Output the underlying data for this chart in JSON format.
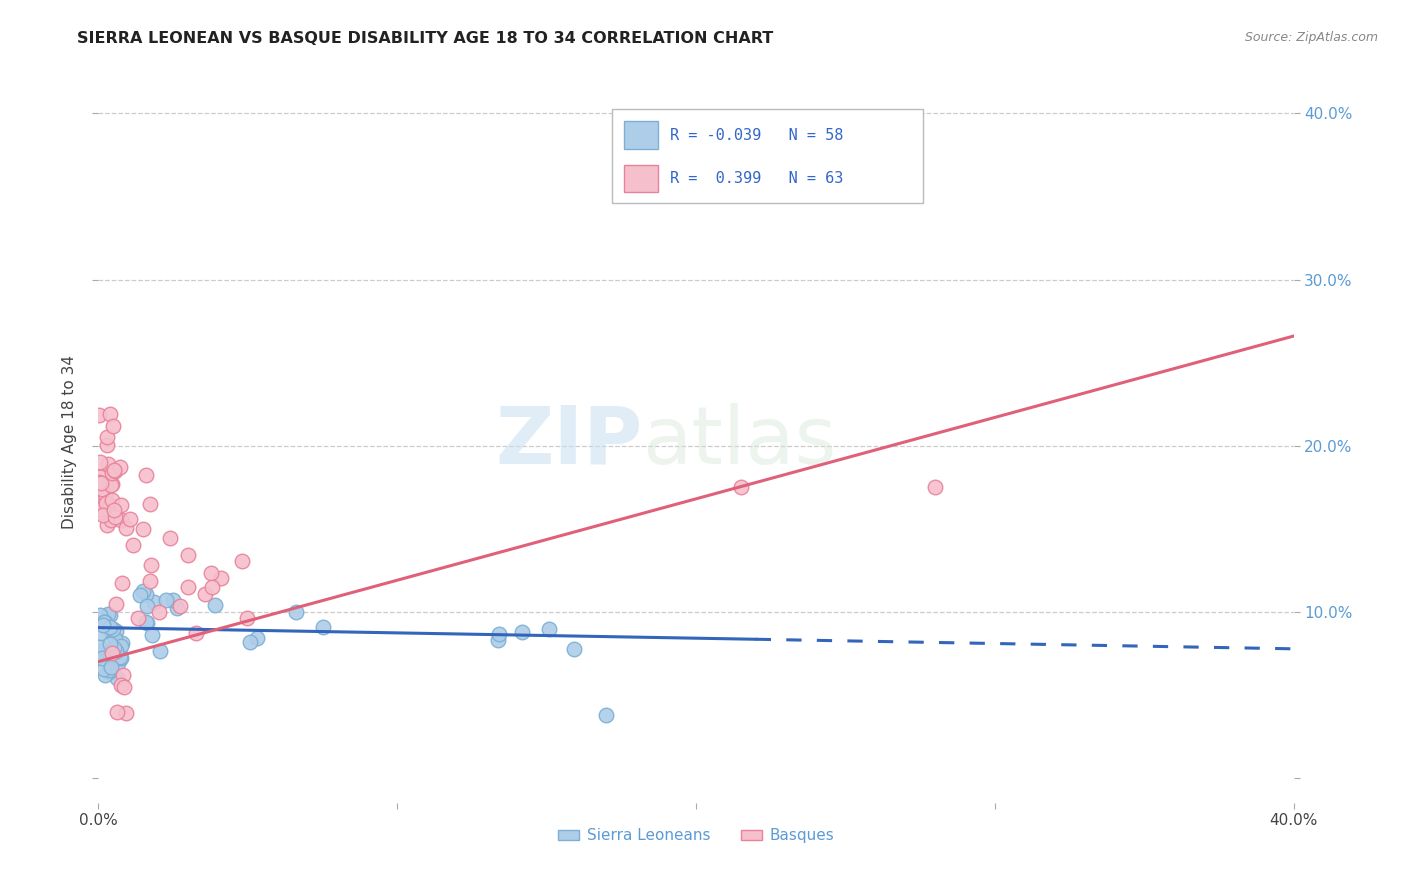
{
  "title": "SIERRA LEONEAN VS BASQUE DISABILITY AGE 18 TO 34 CORRELATION CHART",
  "source": "Source: ZipAtlas.com",
  "ylabel": "Disability Age 18 to 34",
  "xlim": [
    0.0,
    0.4
  ],
  "ylim": [
    -0.015,
    0.42
  ],
  "xticks": [
    0.0,
    0.1,
    0.2,
    0.3,
    0.4
  ],
  "yticks_right": [
    0.0,
    0.1,
    0.2,
    0.3,
    0.4
  ],
  "ytick_labels_right": [
    "",
    "10.0%",
    "20.0%",
    "30.0%",
    "40.0%"
  ],
  "xtick_labels": [
    "0.0%",
    "",
    "",
    "",
    "40.0%"
  ],
  "grid_color": "#cccccc",
  "background_color": "#ffffff",
  "blue_color": "#7bafd4",
  "blue_fill": "#aecde8",
  "pink_color": "#e8829a",
  "pink_fill": "#f5bfcc",
  "blue_line_color": "#3366bb",
  "pink_line_color": "#e0607a",
  "legend_label_blue": "Sierra Leoneans",
  "legend_label_pink": "Basques",
  "watermark_zip": "ZIP",
  "watermark_atlas": "atlas"
}
